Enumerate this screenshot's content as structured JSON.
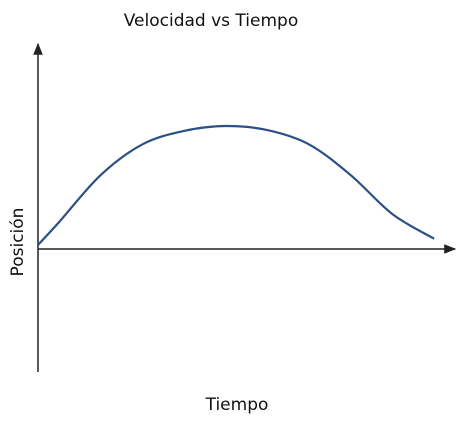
{
  "chart_data": {
    "type": "line",
    "title": "Velocidad vs Tiempo",
    "x_label": "Tiempo",
    "y_label": "Posición",
    "x": [
      0,
      0.5,
      1.5,
      2.5,
      3.5,
      4.5,
      5.5,
      6.5,
      7.5,
      8.5,
      9.5
    ],
    "series": [
      {
        "color": "#2c4f86",
        "values": [
          0.1,
          0.65,
          1.8,
          2.55,
          2.88,
          3.0,
          2.9,
          2.55,
          1.8,
          0.85,
          0.25
        ]
      }
    ],
    "xlim": [
      0,
      10
    ],
    "ylim": [
      -3,
      5
    ]
  }
}
